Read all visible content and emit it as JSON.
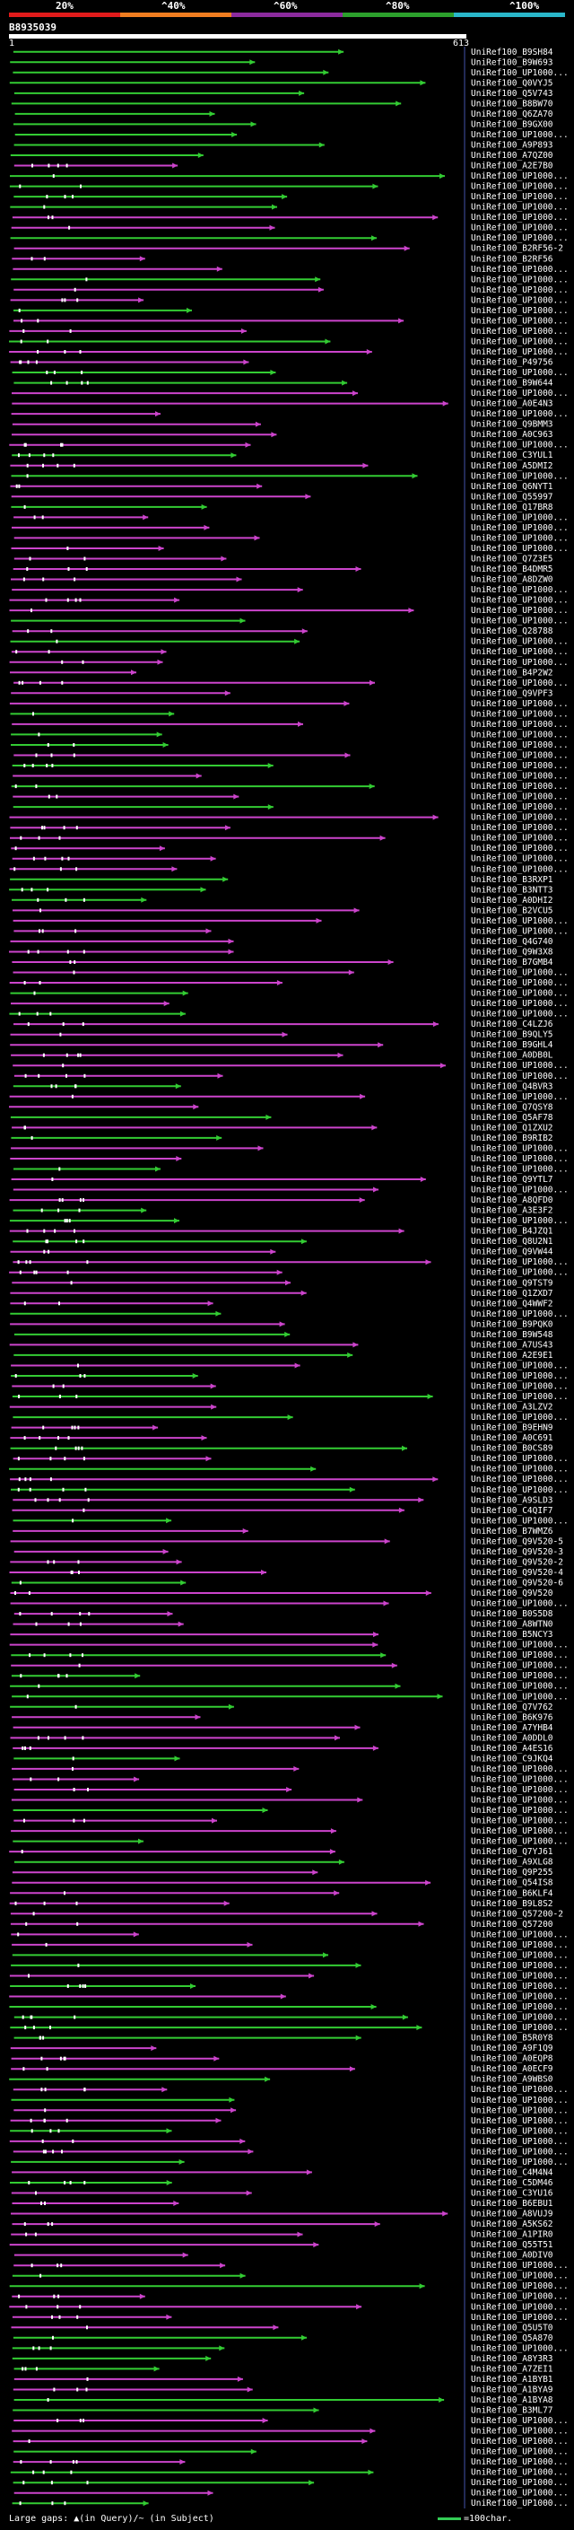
{
  "scale": {
    "ticks": [
      "20%",
      "^40%",
      "^60%",
      "^80%",
      "^100%"
    ],
    "bands": [
      "#e11b1b",
      "#f07d20",
      "#8c2b9e",
      "#2ca02c",
      "#2ab7ca"
    ]
  },
  "query": {
    "id": "B8935039",
    "start": "1",
    "end": "613"
  },
  "colors": {
    "high": "#33cc33",
    "low": "#cc44cc",
    "axis": "#4455aa"
  },
  "hits": [
    "UniRef100_B9SH84",
    "UniRef100_B9W693",
    "UniRef100_UP1000...",
    "UniRef100_Q0VYJ5",
    "UniRef100_Q5V743",
    "UniRef100_B8BW70",
    "UniRef100_Q6ZA70",
    "UniRef100_B9GX00",
    "UniRef100_UP1000...",
    "UniRef100_A9P893",
    "UniRef100_A7QZ00",
    "UniRef100_A2E7B0",
    "UniRef100_UP1000...",
    "UniRef100_UP1000...",
    "UniRef100_UP1000...",
    "UniRef100_UP1000...",
    "UniRef100_UP1000...",
    "UniRef100_UP1000...",
    "UniRef100_UP1000...",
    "UniRef100_B2RF56-2",
    "UniRef100_B2RF56",
    "UniRef100_UP1000...",
    "UniRef100_UP1000...",
    "UniRef100_UP1000...",
    "UniRef100_UP1000...",
    "UniRef100_UP1000...",
    "UniRef100_UP1000...",
    "UniRef100_UP1000...",
    "UniRef100_UP1000...",
    "UniRef100_UP1000...",
    "UniRef100_P49756",
    "UniRef100_UP1000...",
    "UniRef100_B9W644",
    "UniRef100_UP1000...",
    "UniRef100_A0E4N3",
    "UniRef100_UP1000...",
    "UniRef100_Q9BMM3",
    "UniRef100_A0C963",
    "UniRef100_UP1000...",
    "UniRef100_C3YUL1",
    "UniRef100_A5DMI2",
    "UniRef100_UP1000...",
    "UniRef100_Q6NYT1",
    "UniRef100_Q55997",
    "UniRef100_Q17BR8",
    "UniRef100_UP1000...",
    "UniRef100_UP1000...",
    "UniRef100_UP1000...",
    "UniRef100_UP1000...",
    "UniRef100_Q7Z3E5",
    "UniRef100_B4DMR5",
    "UniRef100_A8DZW0",
    "UniRef100_UP1000...",
    "UniRef100_UP1000...",
    "UniRef100_UP1000...",
    "UniRef100_UP1000...",
    "UniRef100_Q28788",
    "UniRef100_UP1000...",
    "UniRef100_UP1000...",
    "UniRef100_UP1000...",
    "UniRef100_B4P2W2",
    "UniRef100_UP1000...",
    "UniRef100_Q9VPF3",
    "UniRef100_UP1000...",
    "UniRef100_UP1000...",
    "UniRef100_UP1000...",
    "UniRef100_UP1000...",
    "UniRef100_UP1000...",
    "UniRef100_UP1000...",
    "UniRef100_UP1000...",
    "UniRef100_UP1000...",
    "UniRef100_UP1000...",
    "UniRef100_UP1000...",
    "UniRef100_UP1000...",
    "UniRef100_UP1000...",
    "UniRef100_UP1000...",
    "UniRef100_UP1000...",
    "UniRef100_UP1000...",
    "UniRef100_UP1000...",
    "UniRef100_UP1000...",
    "UniRef100_B3RXP1",
    "UniRef100_B3NTT3",
    "UniRef100_A0DHI2",
    "UniRef100_B2VCU5",
    "UniRef100_UP1000...",
    "UniRef100_UP1000...",
    "UniRef100_Q4G740",
    "UniRef100_Q9W3X8",
    "UniRef100_B7GMB4",
    "UniRef100_UP1000...",
    "UniRef100_UP1000...",
    "UniRef100_UP1000...",
    "UniRef100_UP1000...",
    "UniRef100_UP1000...",
    "UniRef100_C4LZJ6",
    "UniRef100_B9QLY5",
    "UniRef100_B9GHL4",
    "UniRef100_A0DB0L",
    "UniRef100_UP1000...",
    "UniRef100_UP1000...",
    "UniRef100_Q4BVR3",
    "UniRef100_UP1000...",
    "UniRef100_Q7QSY8",
    "UniRef100_Q5AF78",
    "UniRef100_Q1ZXU2",
    "UniRef100_B9RIB2",
    "UniRef100_UP1000...",
    "UniRef100_UP1000...",
    "UniRef100_UP1000...",
    "UniRef100_Q9YTL7",
    "UniRef100_UP1000...",
    "UniRef100_A8QFD0",
    "UniRef100_A3E3F2",
    "UniRef100_UP1000...",
    "UniRef100_B4JZQ1",
    "UniRef100_Q8U2N1",
    "UniRef100_Q9VW44",
    "UniRef100_UP1000...",
    "UniRef100_UP1000...",
    "UniRef100_Q9TST9",
    "UniRef100_Q1ZXD7",
    "UniRef100_Q4WWF2",
    "UniRef100_UP1000...",
    "UniRef100_B9PQK0",
    "UniRef100_B9W548",
    "UniRef100_A7US43",
    "UniRef100_A2E9E1",
    "UniRef100_UP1000...",
    "UniRef100_UP1000...",
    "UniRef100_UP1000...",
    "UniRef100_UP1000...",
    "UniRef100_A3LZV2",
    "UniRef100_UP1000...",
    "UniRef100_B9EHN9",
    "UniRef100_A0C691",
    "UniRef100_B0CS89",
    "UniRef100_UP1000...",
    "UniRef100_UP1000...",
    "UniRef100_UP1000...",
    "UniRef100_UP1000...",
    "UniRef100_A9SLD3",
    "UniRef100_C4QIF7",
    "UniRef100_UP1000...",
    "UniRef100_B7WMZ6",
    "UniRef100_Q9V520-5",
    "UniRef100_Q9V520-3",
    "UniRef100_Q9V520-2",
    "UniRef100_Q9V520-4",
    "UniRef100_Q9V520-6",
    "UniRef100_Q9V520",
    "UniRef100_UP1000...",
    "UniRef100_B0S5D8",
    "UniRef100_A8WTN0",
    "UniRef100_B5NCY3",
    "UniRef100_UP1000...",
    "UniRef100_UP1000...",
    "UniRef100_UP1000...",
    "UniRef100_UP1000...",
    "UniRef100_UP1000...",
    "UniRef100_UP1000...",
    "UniRef100_Q7V762",
    "UniRef100_B6K976",
    "UniRef100_A7YHB4",
    "UniRef100_A0DDL0",
    "UniRef100_A4ES16",
    "UniRef100_C9JKQ4",
    "UniRef100_UP1000...",
    "UniRef100_UP1000...",
    "UniRef100_UP1000...",
    "UniRef100_UP1000...",
    "UniRef100_UP1000...",
    "UniRef100_UP1000...",
    "UniRef100_UP1000...",
    "UniRef100_UP1000...",
    "UniRef100_Q7YJ61",
    "UniRef100_A9XLG8",
    "UniRef100_Q9P255",
    "UniRef100_Q54IS8",
    "UniRef100_B6KLF4",
    "UniRef100_B9L8S2",
    "UniRef100_Q57200-2",
    "UniRef100_Q57200",
    "UniRef100_UP1000...",
    "UniRef100_UP1000...",
    "UniRef100_UP1000...",
    "UniRef100_UP1000...",
    "UniRef100_UP1000...",
    "UniRef100_UP1000...",
    "UniRef100_UP1000...",
    "UniRef100_UP1000...",
    "UniRef100_UP1000...",
    "UniRef100_UP1000...",
    "UniRef100_B5R0Y8",
    "UniRef100_A9F1Q9",
    "UniRef100_A0EQP8",
    "UniRef100_A0ECF9",
    "UniRef100_A9WBS0",
    "UniRef100_UP1000...",
    "UniRef100_UP1000...",
    "UniRef100_UP1000...",
    "UniRef100_UP1000...",
    "UniRef100_UP1000...",
    "UniRef100_UP1000...",
    "UniRef100_UP1000...",
    "UniRef100_UP1000...",
    "UniRef100_C4M4N4",
    "UniRef100_C5DM46",
    "UniRef100_C3YU16",
    "UniRef100_B6EBU1",
    "UniRef100_A8VUJ9",
    "UniRef100_A5KS62",
    "UniRef100_A1PIR0",
    "UniRef100_Q55T51",
    "UniRef100_A0DIV0",
    "UniRef100_UP1000...",
    "UniRef100_UP1000...",
    "UniRef100_UP1000...",
    "UniRef100_UP1000...",
    "UniRef100_UP1000...",
    "UniRef100_UP1000...",
    "UniRef100_Q5U5T0",
    "UniRef100_Q5A870",
    "UniRef100_UP1000...",
    "UniRef100_A8Y3R3",
    "UniRef100_A7ZEI1",
    "UniRef100_A1BYB1",
    "UniRef100_A1BYA9",
    "UniRef100_A1BYA8",
    "UniRef100_B3ML77",
    "UniRef100_UP1000...",
    "UniRef100_UP1000...",
    "UniRef100_UP1000...",
    "UniRef100_UP1000...",
    "UniRef100_UP1000...",
    "UniRef100_UP1000...",
    "UniRef100_UP1000...",
    "UniRef100_UP1000...",
    "UniRef100_UP1000..."
  ],
  "legend": {
    "gaps": "Large gaps: ▲(in Query)/~ (in Subject)",
    "scale": "=100char."
  }
}
